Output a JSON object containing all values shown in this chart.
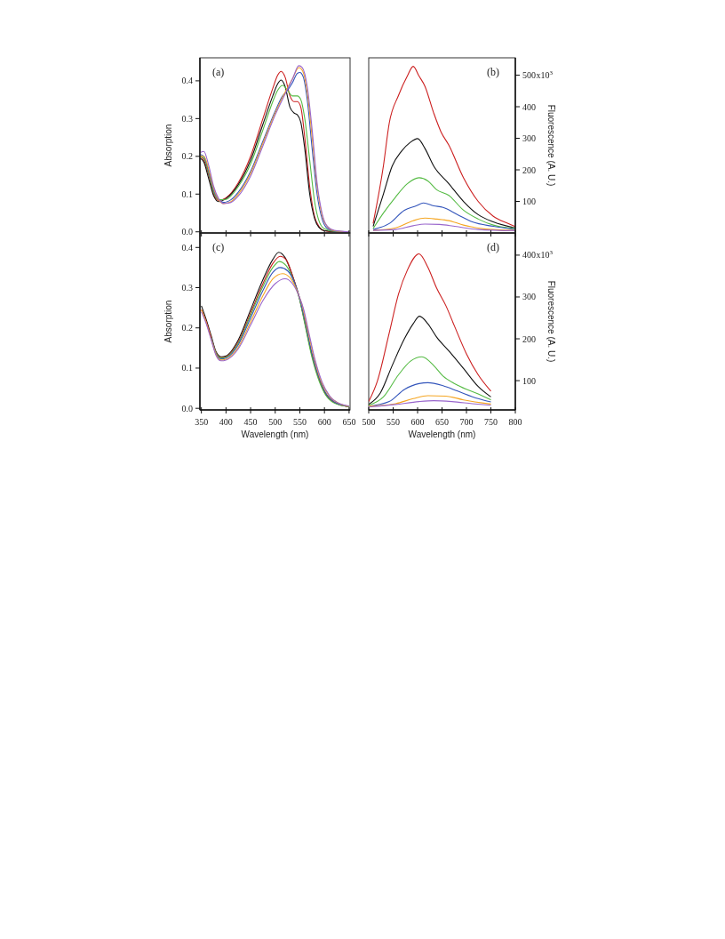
{
  "chart_data": [
    {
      "type": "line",
      "ylabel": "Absorption",
      "annotations": [
        "(a)"
      ],
      "xlim": [
        347,
        652
      ],
      "ylim": [
        -0.003,
        0.461
      ],
      "xticks": [
        350,
        400,
        450,
        500,
        550,
        600,
        650
      ],
      "yticks": [
        {
          "value": 0,
          "label": "0.0"
        },
        0.1,
        0.2,
        0.3,
        0.4
      ],
      "tick_labels": "y",
      "grid": false,
      "series": [
        {
          "color": "#cc2020",
          "x": [
            348,
            355,
            365,
            375,
            385,
            400,
            425,
            450,
            475,
            495,
            505,
            512,
            520,
            530,
            538,
            545,
            552,
            560,
            570,
            580,
            590,
            600,
            620,
            650
          ],
          "values": [
            0.2,
            0.19,
            0.15,
            0.1,
            0.083,
            0.09,
            0.13,
            0.2,
            0.3,
            0.38,
            0.415,
            0.425,
            0.41,
            0.36,
            0.345,
            0.345,
            0.33,
            0.25,
            0.12,
            0.04,
            0.012,
            0.003,
            0,
            0
          ]
        },
        {
          "color": "#111111",
          "x": [
            348,
            355,
            365,
            375,
            385,
            400,
            425,
            450,
            475,
            495,
            505,
            512,
            520,
            530,
            538,
            545,
            552,
            560,
            570,
            580,
            590,
            600,
            650
          ],
          "values": [
            0.195,
            0.185,
            0.14,
            0.095,
            0.08,
            0.088,
            0.125,
            0.19,
            0.285,
            0.36,
            0.392,
            0.402,
            0.385,
            0.33,
            0.315,
            0.31,
            0.29,
            0.22,
            0.1,
            0.035,
            0.01,
            0.003,
            0
          ]
        },
        {
          "color": "#55bb44",
          "x": [
            348,
            355,
            365,
            375,
            385,
            400,
            425,
            450,
            475,
            495,
            505,
            515,
            525,
            535,
            545,
            552,
            560,
            570,
            580,
            590,
            600,
            620,
            650
          ],
          "values": [
            0.2,
            0.195,
            0.155,
            0.105,
            0.085,
            0.086,
            0.12,
            0.18,
            0.27,
            0.345,
            0.375,
            0.388,
            0.375,
            0.36,
            0.36,
            0.35,
            0.3,
            0.19,
            0.08,
            0.025,
            0.008,
            0.001,
            0
          ]
        },
        {
          "color": "#3355bb",
          "x": [
            348,
            355,
            365,
            375,
            385,
            395,
            410,
            425,
            450,
            475,
            500,
            515,
            525,
            535,
            545,
            550,
            557,
            565,
            575,
            585,
            595,
            605,
            620,
            650
          ],
          "values": [
            0.205,
            0.2,
            0.16,
            0.11,
            0.085,
            0.078,
            0.085,
            0.105,
            0.16,
            0.24,
            0.32,
            0.36,
            0.375,
            0.395,
            0.42,
            0.422,
            0.41,
            0.35,
            0.22,
            0.1,
            0.035,
            0.01,
            0.002,
            0
          ]
        },
        {
          "color": "#f5a623",
          "x": [
            348,
            355,
            365,
            375,
            385,
            395,
            410,
            425,
            450,
            475,
            500,
            520,
            535,
            548,
            556,
            565,
            575,
            585,
            595,
            605,
            620,
            650
          ],
          "values": [
            0.2,
            0.2,
            0.165,
            0.115,
            0.085,
            0.075,
            0.08,
            0.1,
            0.155,
            0.235,
            0.315,
            0.37,
            0.405,
            0.435,
            0.425,
            0.37,
            0.25,
            0.12,
            0.045,
            0.015,
            0.003,
            0
          ]
        },
        {
          "color": "#9966cc",
          "x": [
            348,
            355,
            365,
            375,
            385,
            395,
            410,
            425,
            450,
            475,
            500,
            520,
            535,
            548,
            555,
            565,
            575,
            585,
            595,
            605,
            620,
            650
          ],
          "values": [
            0.21,
            0.213,
            0.175,
            0.12,
            0.088,
            0.075,
            0.078,
            0.095,
            0.148,
            0.228,
            0.31,
            0.365,
            0.405,
            0.44,
            0.435,
            0.385,
            0.27,
            0.13,
            0.05,
            0.016,
            0.004,
            0
          ]
        }
      ]
    },
    {
      "type": "line",
      "ylabel": "Fluorescence (A. U.)",
      "annotations": [
        "(b)",
        "x10$^{3}$"
      ],
      "xlim": [
        500,
        800
      ],
      "ylim": [
        0,
        555
      ],
      "xticks": [
        500,
        550,
        600,
        650,
        700,
        750,
        800
      ],
      "yticks": [
        100,
        200,
        300,
        400,
        500
      ],
      "tick_labels": "y",
      "grid": false,
      "series": [
        {
          "color": "#cc2020",
          "x": [
            509,
            530,
            542,
            561,
            579,
            591,
            603,
            615,
            633,
            648,
            664,
            694,
            724,
            755,
            785,
            800
          ],
          "values": [
            30,
            212,
            348,
            436,
            497,
            528,
            497,
            465,
            380,
            320,
            278,
            175,
            100,
            53,
            30,
            20
          ]
        },
        {
          "color": "#111111",
          "x": [
            509,
            530,
            548,
            567,
            585,
            600,
            615,
            633,
            664,
            694,
            724,
            755,
            800
          ],
          "values": [
            21,
            123,
            212,
            259,
            287,
            299,
            268,
            212,
            156,
            100,
            58,
            35,
            16
          ]
        },
        {
          "color": "#55bb44",
          "x": [
            509,
            530,
            555,
            579,
            603,
            621,
            639,
            664,
            694,
            724,
            755,
            800
          ],
          "values": [
            14,
            63,
            114,
            156,
            175,
            165,
            137,
            119,
            72,
            44,
            25,
            14
          ]
        },
        {
          "color": "#3355bb",
          "x": [
            509,
            542,
            573,
            597,
            612,
            633,
            652,
            682,
            712,
            755,
            800
          ],
          "values": [
            11,
            30,
            72,
            86,
            95,
            86,
            81,
            58,
            35,
            21,
            11
          ]
        },
        {
          "color": "#f5a623",
          "x": [
            509,
            555,
            591,
            615,
            639,
            664,
            694,
            736,
            800
          ],
          "values": [
            8,
            16,
            39,
            47,
            44,
            39,
            25,
            13,
            8
          ]
        },
        {
          "color": "#9966cc",
          "x": [
            509,
            555,
            591,
            615,
            645,
            676,
            724,
            800
          ],
          "values": [
            8,
            11,
            23,
            28,
            27,
            21,
            11,
            7
          ]
        }
      ]
    },
    {
      "type": "line",
      "xlabel": "Wavelength (nm)",
      "ylabel": "Absorption",
      "annotations": [
        "(c)"
      ],
      "xlim": [
        347,
        652
      ],
      "ylim": [
        -0.004,
        0.436
      ],
      "xticks": [
        350,
        400,
        450,
        500,
        550,
        600,
        650
      ],
      "yticks": [
        {
          "value": 0,
          "label": "0.0"
        },
        0.1,
        0.2,
        0.3,
        0.4
      ],
      "grid": false,
      "series": [
        {
          "color": "#111111",
          "x": [
            350,
            360,
            370,
            380,
            390,
            400,
            425,
            450,
            475,
            495,
            507,
            520,
            535,
            550,
            560,
            575,
            590,
            600,
            620,
            650
          ],
          "values": [
            0.255,
            0.22,
            0.18,
            0.14,
            0.128,
            0.13,
            0.17,
            0.245,
            0.32,
            0.37,
            0.388,
            0.375,
            0.33,
            0.27,
            0.215,
            0.13,
            0.07,
            0.04,
            0.015,
            0.004
          ]
        },
        {
          "color": "#cc2020",
          "x": [
            350,
            360,
            370,
            380,
            390,
            400,
            425,
            450,
            475,
            495,
            510,
            522,
            535,
            550,
            560,
            575,
            590,
            600,
            620,
            650
          ],
          "values": [
            0.245,
            0.215,
            0.175,
            0.138,
            0.126,
            0.128,
            0.165,
            0.237,
            0.31,
            0.36,
            0.378,
            0.37,
            0.33,
            0.27,
            0.215,
            0.13,
            0.07,
            0.042,
            0.015,
            0.004
          ]
        },
        {
          "color": "#55bb44",
          "x": [
            370,
            380,
            390,
            400,
            425,
            450,
            475,
            495,
            508,
            522,
            535,
            550,
            560,
            575,
            590,
            600,
            620,
            650
          ],
          "values": [
            0.175,
            0.137,
            0.125,
            0.127,
            0.162,
            0.232,
            0.303,
            0.35,
            0.365,
            0.355,
            0.325,
            0.268,
            0.21,
            0.125,
            0.065,
            0.038,
            0.013,
            0.004
          ]
        },
        {
          "color": "#3355bb",
          "x": [
            370,
            380,
            390,
            400,
            425,
            450,
            475,
            495,
            510,
            525,
            540,
            550,
            560,
            575,
            590,
            600,
            620,
            650
          ],
          "values": [
            0.174,
            0.135,
            0.123,
            0.125,
            0.158,
            0.225,
            0.293,
            0.338,
            0.35,
            0.342,
            0.31,
            0.272,
            0.22,
            0.135,
            0.073,
            0.044,
            0.016,
            0.005
          ]
        },
        {
          "color": "#f5a623",
          "x": [
            350,
            360,
            370,
            380,
            390,
            400,
            425,
            450,
            475,
            495,
            515,
            530,
            545,
            555,
            565,
            580,
            595,
            610,
            630,
            650
          ],
          "values": [
            0.245,
            0.213,
            0.172,
            0.133,
            0.12,
            0.122,
            0.152,
            0.215,
            0.28,
            0.322,
            0.335,
            0.325,
            0.29,
            0.255,
            0.2,
            0.12,
            0.062,
            0.03,
            0.012,
            0.005
          ]
        },
        {
          "color": "#9966cc",
          "x": [
            350,
            360,
            370,
            380,
            390,
            400,
            425,
            450,
            475,
            500,
            520,
            535,
            548,
            558,
            568,
            580,
            595,
            610,
            630,
            650
          ],
          "values": [
            0.24,
            0.21,
            0.17,
            0.131,
            0.118,
            0.12,
            0.148,
            0.207,
            0.268,
            0.31,
            0.322,
            0.31,
            0.28,
            0.245,
            0.19,
            0.125,
            0.066,
            0.032,
            0.012,
            0.006
          ]
        }
      ]
    },
    {
      "type": "line",
      "xlabel": "Wavelength (nm)",
      "ylabel": "Fluorescence (A. U.)",
      "annotations": [
        "(d)",
        "x10$^{3}$"
      ],
      "xlim": [
        500,
        800
      ],
      "ylim": [
        30,
        453
      ],
      "xticks": [
        500,
        550,
        600,
        650,
        700,
        750,
        800
      ],
      "yticks": [
        100,
        200,
        300,
        400
      ],
      "grid": false,
      "series": [
        {
          "color": "#cc2020",
          "x": [
            500,
            518,
            542,
            561,
            579,
            603,
            621,
            639,
            658,
            676,
            700,
            724,
            750
          ],
          "values": [
            50,
            100,
            214,
            307,
            364,
            403,
            371,
            321,
            279,
            229,
            164,
            114,
            75
          ]
        },
        {
          "color": "#111111",
          "x": [
            500,
            524,
            548,
            573,
            591,
            604,
            621,
            639,
            664,
            694,
            724,
            750
          ],
          "values": [
            43,
            71,
            136,
            200,
            236,
            254,
            236,
            204,
            171,
            129,
            86,
            61
          ]
        },
        {
          "color": "#55bb44",
          "x": [
            500,
            530,
            561,
            585,
            609,
            633,
            652,
            682,
            724,
            750
          ],
          "values": [
            41,
            61,
            114,
            146,
            157,
            136,
            111,
            89,
            68,
            54
          ]
        },
        {
          "color": "#3355bb",
          "x": [
            500,
            542,
            573,
            603,
            621,
            652,
            682,
            724,
            750
          ],
          "values": [
            39,
            50,
            79,
            93,
            95,
            88,
            75,
            57,
            49
          ]
        },
        {
          "color": "#f5a623",
          "x": [
            500,
            555,
            591,
            621,
            658,
            694,
            750
          ],
          "values": [
            39,
            45,
            57,
            64,
            63,
            54,
            44
          ]
        },
        {
          "color": "#9966cc",
          "x": [
            500,
            555,
            603,
            633,
            670,
            712,
            750
          ],
          "values": [
            37,
            43,
            50,
            52,
            50,
            45,
            41
          ]
        }
      ]
    }
  ]
}
